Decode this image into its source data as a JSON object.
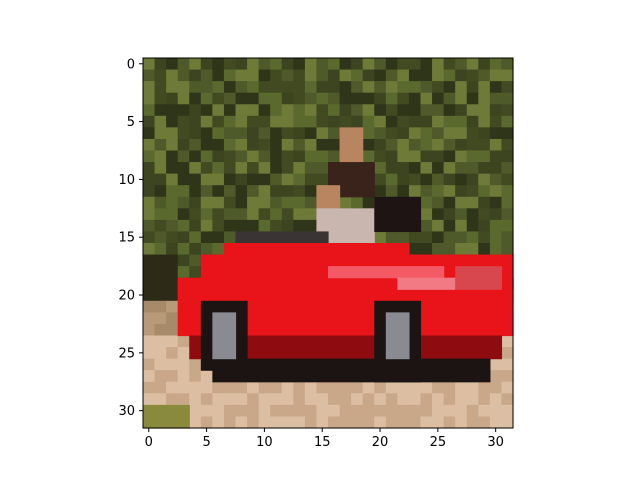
{
  "figure": {
    "title": "",
    "grid_size": [
      32,
      32
    ],
    "x_axis": {
      "range": [
        -0.5,
        31.5
      ],
      "ticks": [
        0,
        5,
        10,
        15,
        20,
        25,
        30
      ]
    },
    "y_axis": {
      "range": [
        31.5,
        -0.5
      ],
      "inverted": true,
      "ticks": [
        0,
        5,
        10,
        15,
        20,
        25,
        30
      ]
    },
    "x_tick_labels": [
      "0",
      "5",
      "10",
      "15",
      "20",
      "25",
      "30"
    ],
    "y_tick_labels": [
      "0",
      "5",
      "10",
      "15",
      "20",
      "25",
      "30"
    ]
  },
  "image": {
    "description_colors": {
      "foliage_dark": "#2f3518",
      "foliage_mid": "#4f5a2a",
      "foliage_light": "#6d7a38",
      "road_light": "#dcbfa3",
      "road_mid": "#c9a88a",
      "car_red": "#e8141a",
      "car_highlight": "#f35a66",
      "car_dark": "#8e0c10",
      "tire_dark": "#1b1412",
      "hubcap": "#8a8b92",
      "person_skin": "#b88560",
      "person_dark": "#3a231b",
      "shirt_light": "#c9b6ae",
      "grass_green": "#8a8a3c"
    }
  }
}
